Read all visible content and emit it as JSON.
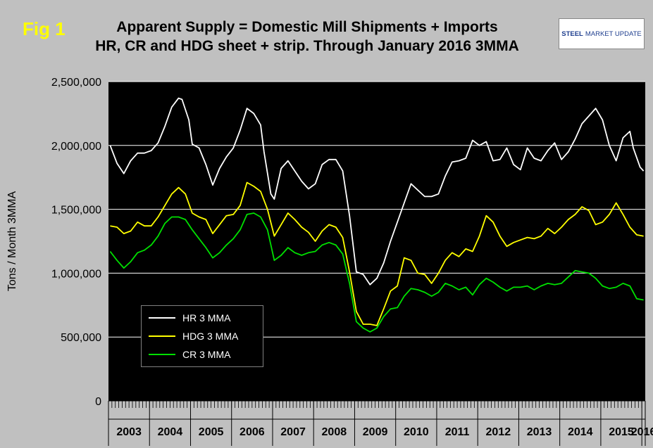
{
  "figure": {
    "label": "Fig 1",
    "title_line1": "Apparent Supply = Domestic Mill Shipments + Imports",
    "title_line2": "HR, CR and HDG sheet + strip. Through January 2016 3MMA",
    "logo_text1": "STEEL",
    "logo_text2": "MARKET UPDATE"
  },
  "colors": {
    "page_bg": "#c0c0c0",
    "plot_bg": "#000000",
    "grid": "#ffffff",
    "hr": "#ffffff",
    "hdg": "#ffff00",
    "cr": "#00e000",
    "fig_label": "#ffff00"
  },
  "chart_data": {
    "type": "line",
    "title": "Apparent Supply = Domestic Mill Shipments + Imports",
    "subtitle": "HR, CR and HDG sheet + strip. Through January 2016 3MMA",
    "ylabel": "Tons / Month 3MMA",
    "xlabel": "",
    "ylim": [
      0,
      2500000
    ],
    "yticks": [
      0,
      500000,
      1000000,
      1500000,
      2000000,
      2500000
    ],
    "ytick_labels": [
      "0",
      "500,000",
      "1,000,000",
      "1,500,000",
      "2,000,000",
      "2,500,000"
    ],
    "x_start": "2003-01",
    "x_end": "2016-01",
    "year_labels": [
      "2003",
      "2004",
      "2005",
      "2006",
      "2007",
      "2008",
      "2009",
      "2010",
      "2011",
      "2012",
      "2013",
      "2014",
      "2015",
      "2016"
    ],
    "grid": "horizontal",
    "legend_position": "bottom-left",
    "series": [
      {
        "name": "HR 3 MMA",
        "color": "#ffffff",
        "points": [
          [
            "2003-01",
            2000000
          ],
          [
            "2003-03",
            1860000
          ],
          [
            "2003-05",
            1780000
          ],
          [
            "2003-07",
            1880000
          ],
          [
            "2003-09",
            1940000
          ],
          [
            "2003-11",
            1940000
          ],
          [
            "2004-01",
            1960000
          ],
          [
            "2004-03",
            2020000
          ],
          [
            "2004-05",
            2150000
          ],
          [
            "2004-07",
            2300000
          ],
          [
            "2004-09",
            2370000
          ],
          [
            "2004-10",
            2360000
          ],
          [
            "2004-12",
            2200000
          ],
          [
            "2005-01",
            2010000
          ],
          [
            "2005-03",
            1980000
          ],
          [
            "2005-05",
            1850000
          ],
          [
            "2005-07",
            1690000
          ],
          [
            "2005-09",
            1820000
          ],
          [
            "2005-11",
            1910000
          ],
          [
            "2006-01",
            1980000
          ],
          [
            "2006-03",
            2120000
          ],
          [
            "2006-05",
            2290000
          ],
          [
            "2006-07",
            2250000
          ],
          [
            "2006-09",
            2160000
          ],
          [
            "2006-10",
            1950000
          ],
          [
            "2006-12",
            1620000
          ],
          [
            "2007-01",
            1580000
          ],
          [
            "2007-03",
            1820000
          ],
          [
            "2007-05",
            1880000
          ],
          [
            "2007-07",
            1800000
          ],
          [
            "2007-09",
            1720000
          ],
          [
            "2007-11",
            1660000
          ],
          [
            "2008-01",
            1700000
          ],
          [
            "2008-03",
            1850000
          ],
          [
            "2008-05",
            1890000
          ],
          [
            "2008-07",
            1890000
          ],
          [
            "2008-09",
            1800000
          ],
          [
            "2008-11",
            1450000
          ],
          [
            "2009-01",
            1010000
          ],
          [
            "2009-03",
            990000
          ],
          [
            "2009-05",
            910000
          ],
          [
            "2009-07",
            960000
          ],
          [
            "2009-09",
            1080000
          ],
          [
            "2009-11",
            1250000
          ],
          [
            "2010-01",
            1400000
          ],
          [
            "2010-03",
            1550000
          ],
          [
            "2010-05",
            1700000
          ],
          [
            "2010-07",
            1650000
          ],
          [
            "2010-09",
            1600000
          ],
          [
            "2010-11",
            1600000
          ],
          [
            "2011-01",
            1620000
          ],
          [
            "2011-03",
            1760000
          ],
          [
            "2011-05",
            1870000
          ],
          [
            "2011-07",
            1880000
          ],
          [
            "2011-09",
            1900000
          ],
          [
            "2011-11",
            2040000
          ],
          [
            "2012-01",
            2000000
          ],
          [
            "2012-03",
            2030000
          ],
          [
            "2012-05",
            1880000
          ],
          [
            "2012-07",
            1890000
          ],
          [
            "2012-09",
            1980000
          ],
          [
            "2012-11",
            1850000
          ],
          [
            "2013-01",
            1810000
          ],
          [
            "2013-03",
            1980000
          ],
          [
            "2013-05",
            1900000
          ],
          [
            "2013-07",
            1880000
          ],
          [
            "2013-09",
            1960000
          ],
          [
            "2013-11",
            2020000
          ],
          [
            "2014-01",
            1890000
          ],
          [
            "2014-03",
            1950000
          ],
          [
            "2014-05",
            2050000
          ],
          [
            "2014-07",
            2170000
          ],
          [
            "2014-09",
            2230000
          ],
          [
            "2014-11",
            2290000
          ],
          [
            "2015-01",
            2200000
          ],
          [
            "2015-03",
            2000000
          ],
          [
            "2015-05",
            1880000
          ],
          [
            "2015-07",
            2060000
          ],
          [
            "2015-09",
            2110000
          ],
          [
            "2015-10",
            1980000
          ],
          [
            "2015-12",
            1830000
          ],
          [
            "2016-01",
            1800000
          ]
        ]
      },
      {
        "name": "HDG 3 MMA",
        "color": "#ffff00",
        "points": [
          [
            "2003-01",
            1370000
          ],
          [
            "2003-03",
            1360000
          ],
          [
            "2003-05",
            1310000
          ],
          [
            "2003-07",
            1330000
          ],
          [
            "2003-09",
            1400000
          ],
          [
            "2003-11",
            1370000
          ],
          [
            "2004-01",
            1370000
          ],
          [
            "2004-03",
            1440000
          ],
          [
            "2004-05",
            1530000
          ],
          [
            "2004-07",
            1620000
          ],
          [
            "2004-09",
            1670000
          ],
          [
            "2004-11",
            1620000
          ],
          [
            "2005-01",
            1470000
          ],
          [
            "2005-03",
            1440000
          ],
          [
            "2005-05",
            1420000
          ],
          [
            "2005-07",
            1310000
          ],
          [
            "2005-09",
            1380000
          ],
          [
            "2005-11",
            1450000
          ],
          [
            "2006-01",
            1460000
          ],
          [
            "2006-03",
            1530000
          ],
          [
            "2006-05",
            1710000
          ],
          [
            "2006-07",
            1680000
          ],
          [
            "2006-09",
            1640000
          ],
          [
            "2006-11",
            1500000
          ],
          [
            "2007-01",
            1290000
          ],
          [
            "2007-03",
            1380000
          ],
          [
            "2007-05",
            1470000
          ],
          [
            "2007-07",
            1420000
          ],
          [
            "2007-09",
            1360000
          ],
          [
            "2007-11",
            1320000
          ],
          [
            "2008-01",
            1250000
          ],
          [
            "2008-03",
            1330000
          ],
          [
            "2008-05",
            1380000
          ],
          [
            "2008-07",
            1360000
          ],
          [
            "2008-09",
            1280000
          ],
          [
            "2008-11",
            1010000
          ],
          [
            "2009-01",
            700000
          ],
          [
            "2009-03",
            600000
          ],
          [
            "2009-05",
            600000
          ],
          [
            "2009-07",
            590000
          ],
          [
            "2009-09",
            720000
          ],
          [
            "2009-11",
            860000
          ],
          [
            "2010-01",
            900000
          ],
          [
            "2010-03",
            1120000
          ],
          [
            "2010-05",
            1100000
          ],
          [
            "2010-07",
            1000000
          ],
          [
            "2010-09",
            990000
          ],
          [
            "2010-11",
            920000
          ],
          [
            "2011-01",
            1000000
          ],
          [
            "2011-03",
            1100000
          ],
          [
            "2011-05",
            1160000
          ],
          [
            "2011-07",
            1130000
          ],
          [
            "2011-09",
            1190000
          ],
          [
            "2011-11",
            1170000
          ],
          [
            "2012-01",
            1290000
          ],
          [
            "2012-03",
            1450000
          ],
          [
            "2012-05",
            1400000
          ],
          [
            "2012-07",
            1290000
          ],
          [
            "2012-09",
            1210000
          ],
          [
            "2012-11",
            1240000
          ],
          [
            "2013-01",
            1260000
          ],
          [
            "2013-03",
            1280000
          ],
          [
            "2013-05",
            1270000
          ],
          [
            "2013-07",
            1290000
          ],
          [
            "2013-09",
            1350000
          ],
          [
            "2013-11",
            1310000
          ],
          [
            "2014-01",
            1360000
          ],
          [
            "2014-03",
            1420000
          ],
          [
            "2014-05",
            1460000
          ],
          [
            "2014-07",
            1520000
          ],
          [
            "2014-09",
            1490000
          ],
          [
            "2014-11",
            1380000
          ],
          [
            "2015-01",
            1400000
          ],
          [
            "2015-03",
            1460000
          ],
          [
            "2015-05",
            1550000
          ],
          [
            "2015-07",
            1460000
          ],
          [
            "2015-09",
            1360000
          ],
          [
            "2015-11",
            1300000
          ],
          [
            "2016-01",
            1290000
          ]
        ]
      },
      {
        "name": "CR 3 MMA",
        "color": "#00e000",
        "points": [
          [
            "2003-01",
            1170000
          ],
          [
            "2003-03",
            1100000
          ],
          [
            "2003-05",
            1040000
          ],
          [
            "2003-07",
            1090000
          ],
          [
            "2003-09",
            1160000
          ],
          [
            "2003-11",
            1180000
          ],
          [
            "2004-01",
            1220000
          ],
          [
            "2004-03",
            1290000
          ],
          [
            "2004-05",
            1390000
          ],
          [
            "2004-07",
            1440000
          ],
          [
            "2004-09",
            1440000
          ],
          [
            "2004-11",
            1420000
          ],
          [
            "2005-01",
            1340000
          ],
          [
            "2005-03",
            1270000
          ],
          [
            "2005-05",
            1200000
          ],
          [
            "2005-07",
            1120000
          ],
          [
            "2005-09",
            1160000
          ],
          [
            "2005-11",
            1220000
          ],
          [
            "2006-01",
            1270000
          ],
          [
            "2006-03",
            1340000
          ],
          [
            "2006-05",
            1460000
          ],
          [
            "2006-07",
            1470000
          ],
          [
            "2006-09",
            1440000
          ],
          [
            "2006-11",
            1340000
          ],
          [
            "2007-01",
            1100000
          ],
          [
            "2007-03",
            1140000
          ],
          [
            "2007-05",
            1200000
          ],
          [
            "2007-07",
            1160000
          ],
          [
            "2007-09",
            1140000
          ],
          [
            "2007-11",
            1160000
          ],
          [
            "2008-01",
            1170000
          ],
          [
            "2008-03",
            1220000
          ],
          [
            "2008-05",
            1240000
          ],
          [
            "2008-07",
            1220000
          ],
          [
            "2008-09",
            1150000
          ],
          [
            "2008-11",
            920000
          ],
          [
            "2009-01",
            620000
          ],
          [
            "2009-03",
            570000
          ],
          [
            "2009-05",
            540000
          ],
          [
            "2009-07",
            570000
          ],
          [
            "2009-09",
            660000
          ],
          [
            "2009-11",
            720000
          ],
          [
            "2010-01",
            730000
          ],
          [
            "2010-03",
            820000
          ],
          [
            "2010-05",
            880000
          ],
          [
            "2010-07",
            870000
          ],
          [
            "2010-09",
            850000
          ],
          [
            "2010-11",
            820000
          ],
          [
            "2011-01",
            850000
          ],
          [
            "2011-03",
            920000
          ],
          [
            "2011-05",
            900000
          ],
          [
            "2011-07",
            870000
          ],
          [
            "2011-09",
            890000
          ],
          [
            "2011-11",
            830000
          ],
          [
            "2012-01",
            910000
          ],
          [
            "2012-03",
            960000
          ],
          [
            "2012-05",
            930000
          ],
          [
            "2012-07",
            890000
          ],
          [
            "2012-09",
            860000
          ],
          [
            "2012-11",
            890000
          ],
          [
            "2013-01",
            890000
          ],
          [
            "2013-03",
            900000
          ],
          [
            "2013-05",
            870000
          ],
          [
            "2013-07",
            900000
          ],
          [
            "2013-09",
            920000
          ],
          [
            "2013-11",
            910000
          ],
          [
            "2014-01",
            920000
          ],
          [
            "2014-03",
            970000
          ],
          [
            "2014-05",
            1020000
          ],
          [
            "2014-07",
            1010000
          ],
          [
            "2014-09",
            1000000
          ],
          [
            "2014-11",
            960000
          ],
          [
            "2015-01",
            900000
          ],
          [
            "2015-03",
            880000
          ],
          [
            "2015-05",
            890000
          ],
          [
            "2015-07",
            920000
          ],
          [
            "2015-09",
            900000
          ],
          [
            "2015-11",
            800000
          ],
          [
            "2016-01",
            790000
          ]
        ]
      }
    ]
  }
}
